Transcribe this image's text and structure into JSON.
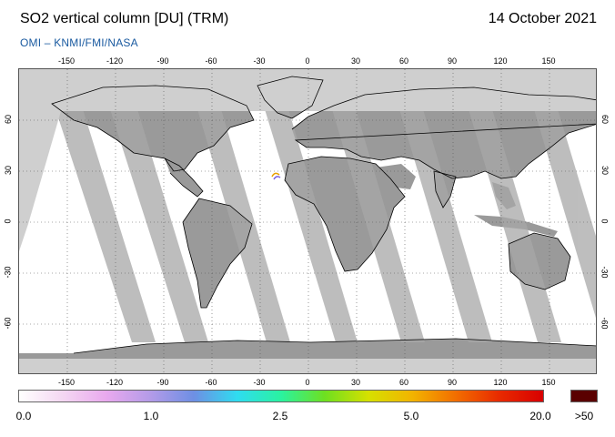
{
  "header": {
    "title": "SO2 vertical column [DU] (TRM)",
    "date": "14 October 2021",
    "credit": "OMI  –  KNMI/FMI/NASA"
  },
  "map": {
    "projection": "equirectangular",
    "lon_ticks": [
      "-150",
      "-120",
      "-90",
      "-60",
      "-30",
      "0",
      "30",
      "60",
      "90",
      "120",
      "150"
    ],
    "lat_ticks": [
      "60",
      "30",
      "0",
      "-30",
      "-60"
    ],
    "land_color": "#9a9a9a",
    "no_data_color": "#cfcfcf",
    "coast_color": "#000000",
    "grid_style": "dotted",
    "extent": {
      "lon": [
        -180,
        180
      ],
      "lat": [
        -90,
        90
      ]
    }
  },
  "colorbar": {
    "labels": [
      "0.0",
      "1.0",
      "2.5",
      "5.0",
      "20.0"
    ],
    "over_label": ">50",
    "over_color": "#5a0000",
    "colors": [
      "#ffffff",
      "#f4d7f2",
      "#e9a9ee",
      "#b49be8",
      "#6e8fe4",
      "#2fdcf0",
      "#2af2a0",
      "#6ee020",
      "#d6e000",
      "#f2b400",
      "#f26e00",
      "#e82a00",
      "#d80000"
    ]
  }
}
